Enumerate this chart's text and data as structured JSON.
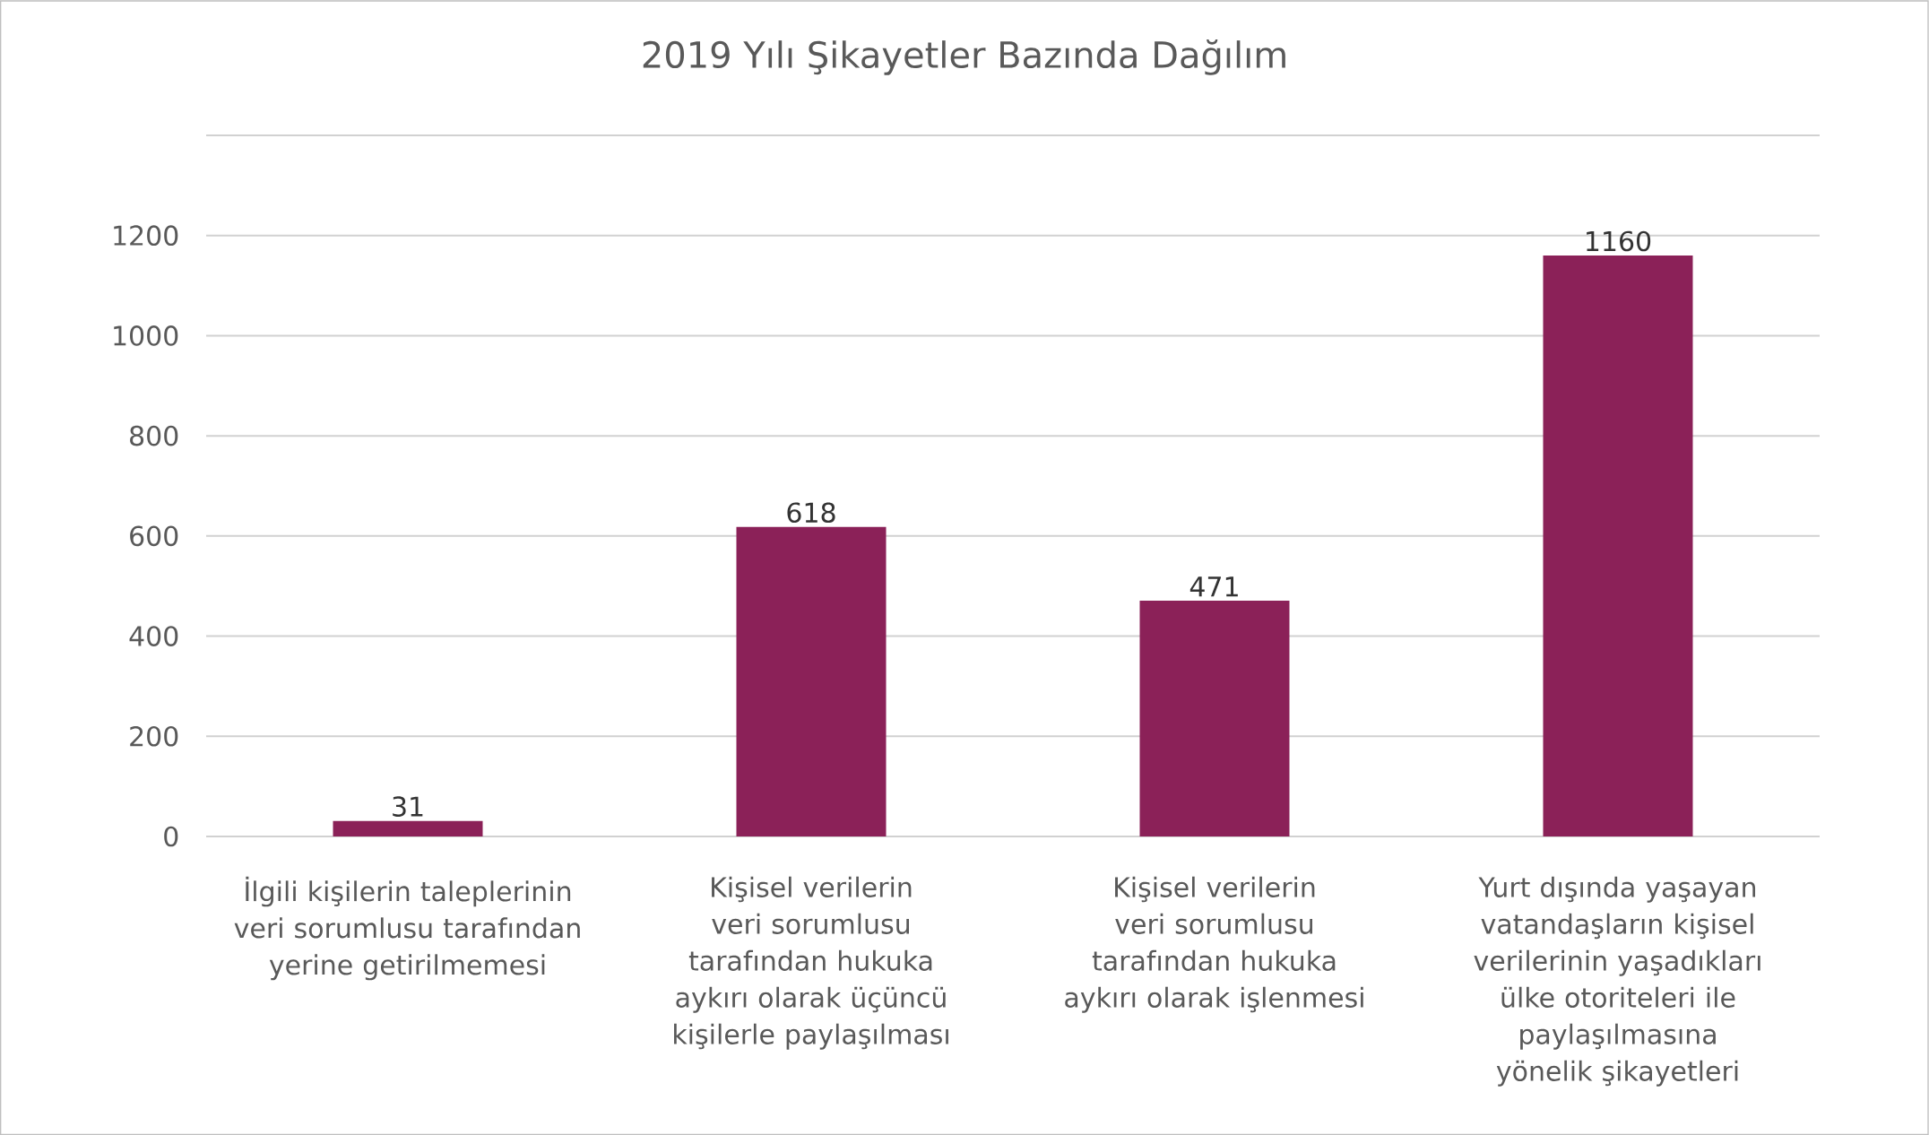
{
  "chart_data": {
    "type": "bar",
    "title": "2019 Yılı Şikayetler Bazında Dağılım",
    "categories": [
      "İlgili kişilerin taleplerinin veri sorumlusu tarafından yerine getirilmemesi",
      "Kişisel verilerin veri sorumlusu tarafından hukuka aykırı olarak üçüncü kişilerle paylaşılması",
      "Kişisel verilerin veri sorumlusu tarafından hukuka aykırı olarak işlenmesi",
      "Yurt dışında yaşayan vatandaşların kişisel verilerinin yaşadıkları ülke otoriteleri ile paylaşılmasına yönelik şikayetleri"
    ],
    "values": [
      31,
      618,
      471,
      1160
    ],
    "color": "#8b2158",
    "ylim": [
      0,
      1400
    ],
    "yticks": [
      0,
      200,
      400,
      600,
      800,
      1000,
      1200,
      {
        "value": 1400,
        "label": null
      }
    ],
    "grid": "y",
    "data_labels": true
  }
}
